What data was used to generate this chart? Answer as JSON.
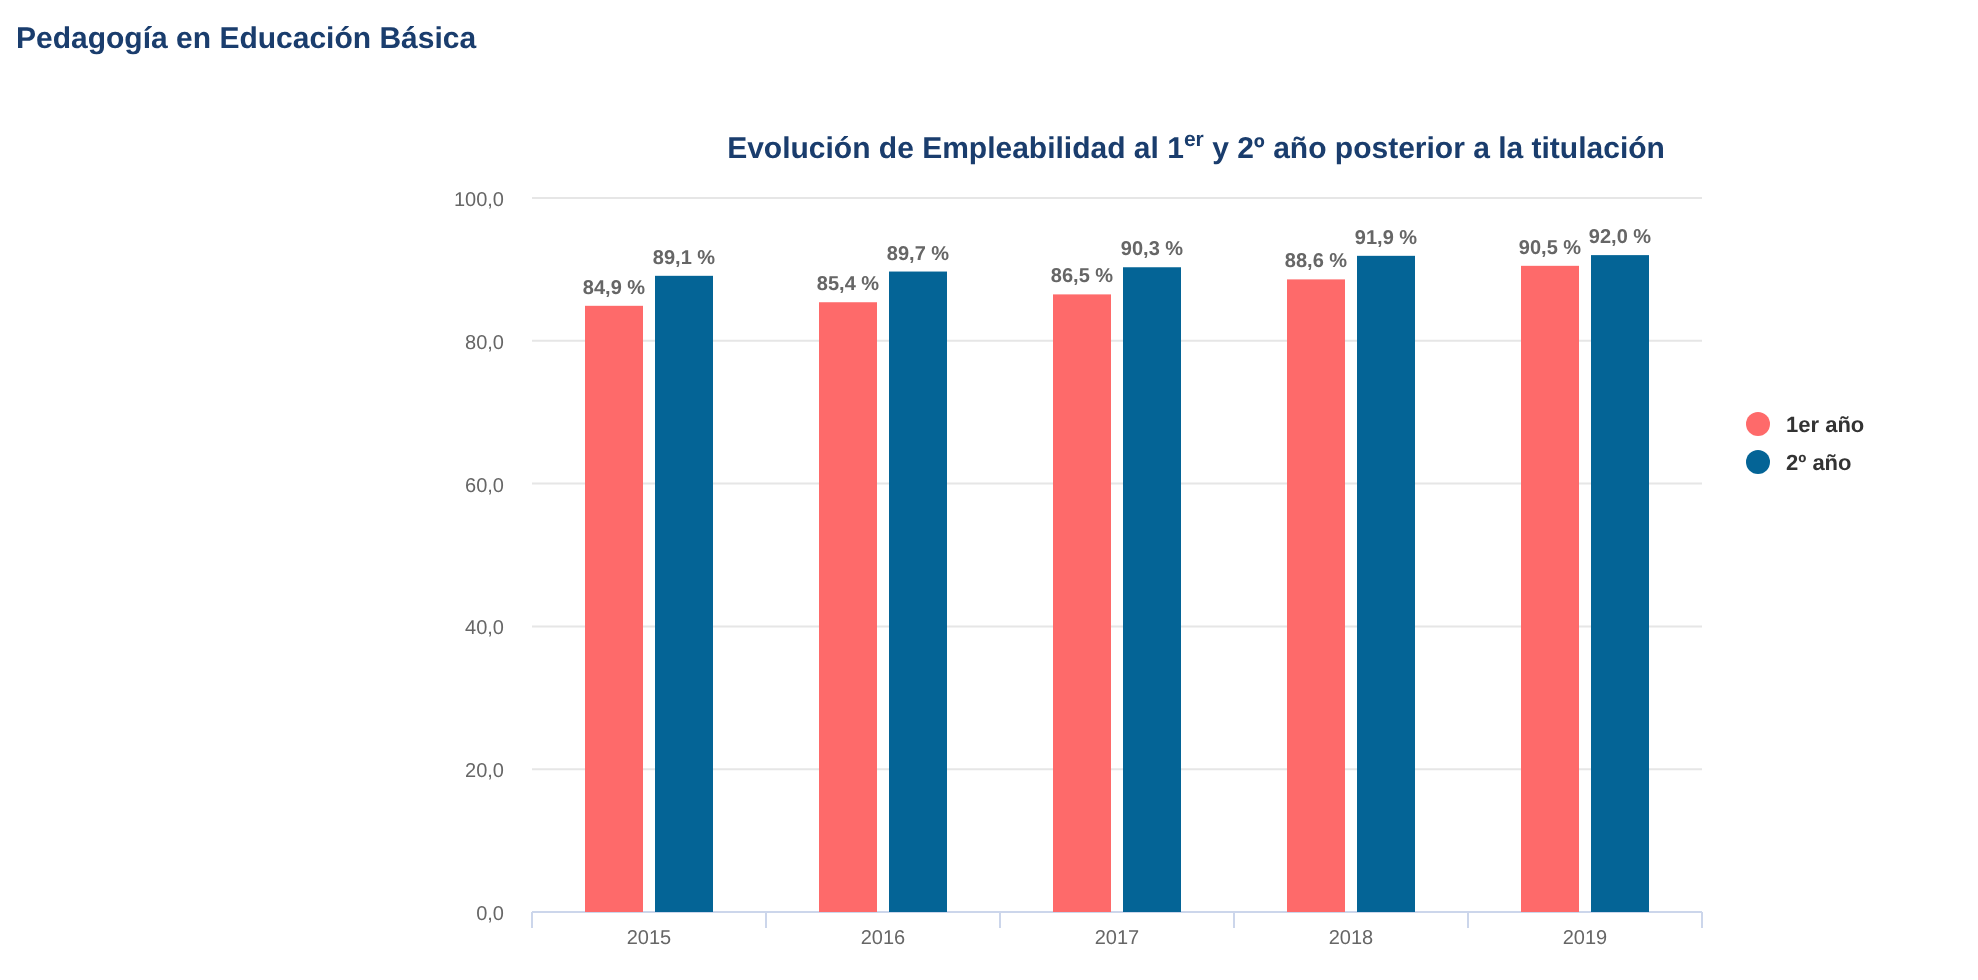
{
  "chart_data": {
    "type": "bar",
    "title": "Pedagogía en Educación Básica",
    "subtitle": "Evolución de Empleabilidad al 1$^{er}$ y 2º año posterior a la titulación",
    "categories": [
      "2015",
      "2016",
      "2017",
      "2018",
      "2019"
    ],
    "series": [
      {
        "name": "1er año",
        "color": "#fe6a6a",
        "values": [
          84.9,
          85.4,
          86.5,
          88.6,
          90.5
        ],
        "value_labels": [
          "84,9 %",
          "85,4 %",
          "86,5 %",
          "88,6 %",
          "90,5 %"
        ]
      },
      {
        "name": "2º año",
        "color": "#046496",
        "values": [
          89.1,
          89.7,
          90.3,
          91.9,
          92.0
        ],
        "value_labels": [
          "89,1 %",
          "89,7 %",
          "90,3 %",
          "91,9 %",
          "92,0 %"
        ]
      }
    ],
    "ylim": [
      0,
      100
    ],
    "yticks": [
      {
        "value": 0,
        "label": "0,0"
      },
      {
        "value": 20,
        "label": "20,0"
      },
      {
        "value": 40,
        "label": "40,0"
      },
      {
        "value": 60,
        "label": "60,0"
      },
      {
        "value": 80,
        "label": "80,0"
      },
      {
        "value": 100,
        "label": "100,0"
      }
    ],
    "grid": "y",
    "legend": "right"
  }
}
